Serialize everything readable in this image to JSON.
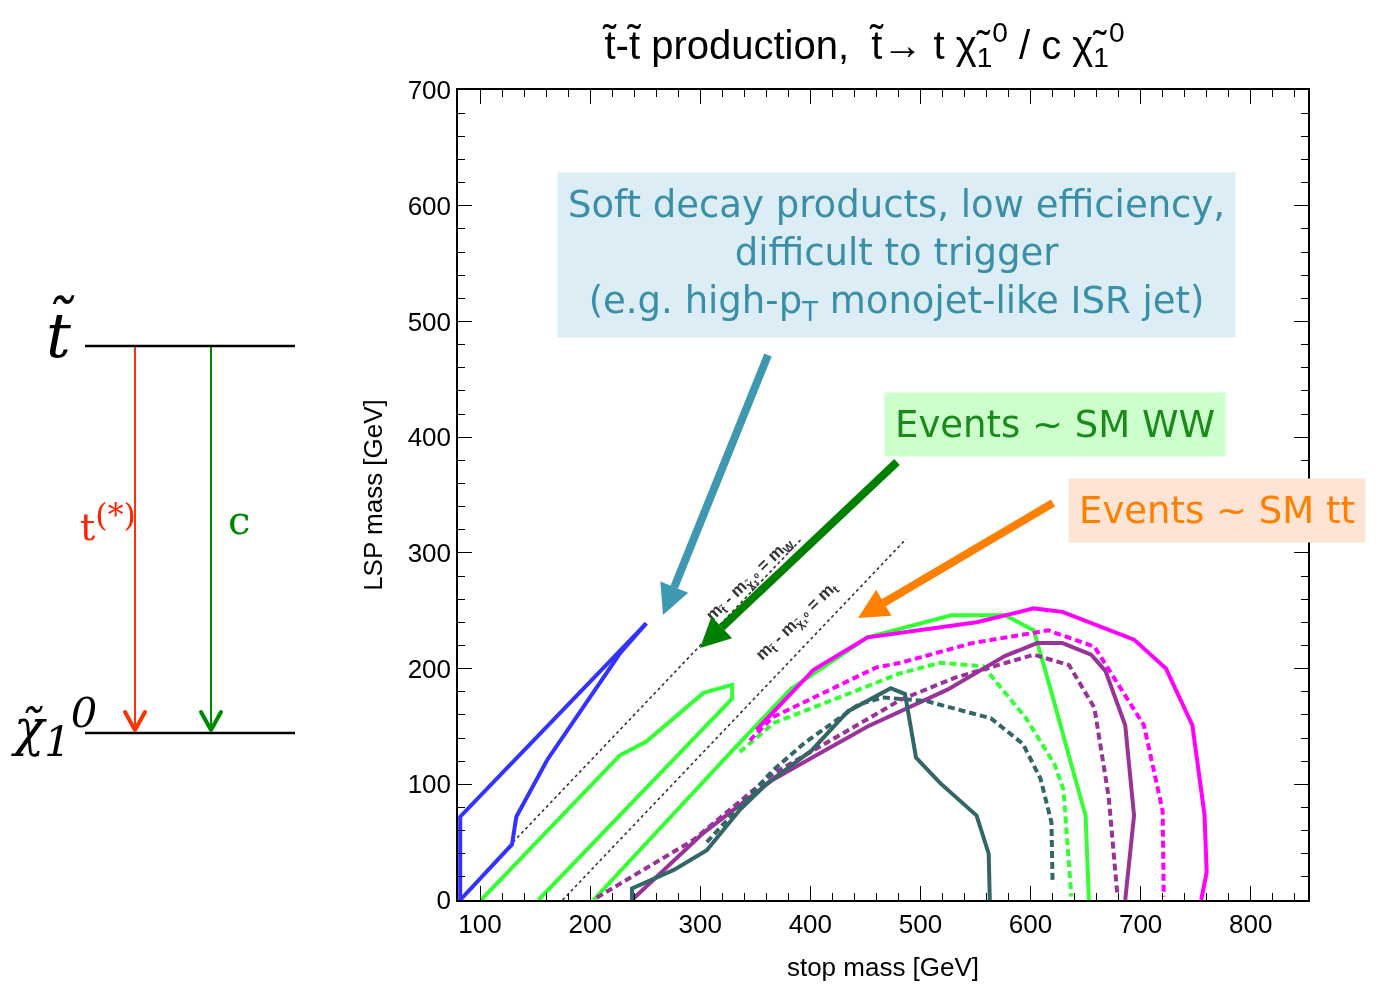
{
  "chart_data": {
    "type": "line",
    "title": "t̃-t̃ production,  t̃→ t χ̃$_{1}$$^{0}$ / c χ̃$_{1}$$^{0}$",
    "xlabel": "stop mass [GeV]",
    "ylabel": "LSP mass [GeV]",
    "xlim": [
      80,
      852
    ],
    "ylim": [
      0,
      700
    ],
    "xticks": [
      100,
      200,
      300,
      400,
      500,
      600,
      700,
      800
    ],
    "yticks": [
      0,
      100,
      200,
      300,
      400,
      500,
      600,
      700
    ],
    "series": [
      {
        "color": "#333333",
        "line_style": "dotted",
        "x": [
          130,
          392
        ],
        "values": [
          50,
          312
        ]
      },
      {
        "color": "#333333",
        "line_style": "dotted",
        "x": [
          175,
          487
        ],
        "values": [
          0,
          312
        ]
      },
      {
        "color": "#3333ff",
        "line_style": "solid",
        "x": [
          82,
          82,
          251
        ],
        "values": [
          0,
          72,
          239
        ]
      },
      {
        "color": "#3333ff",
        "line_style": "solid",
        "x": [
          82,
          129,
          133,
          161,
          227,
          251
        ],
        "values": [
          0,
          48,
          72,
          121,
          213,
          239
        ]
      },
      {
        "color": "#33ff33",
        "line_style": "solid",
        "x": [
          101,
          227,
          251,
          303,
          329,
          329,
          153
        ],
        "values": [
          0,
          125,
          137,
          179,
          186,
          174,
          0
        ]
      },
      {
        "color": "#33ff33",
        "line_style": "solid",
        "x": [
          203,
          330,
          382,
          452,
          528,
          577,
          603,
          620,
          640,
          650,
          653
        ],
        "values": [
          0,
          130,
          182,
          227,
          246,
          246,
          233,
          176,
          107,
          73,
          0
        ]
      },
      {
        "color": "#33ff33",
        "line_style": "dashed",
        "x": [
          336,
          367,
          482,
          518,
          557,
          596,
          622,
          630,
          637
        ],
        "values": [
          128,
          153,
          196,
          205,
          202,
          157,
          117,
          95,
          3
        ]
      },
      {
        "color": "#ff00ff",
        "line_style": "solid",
        "x": [
          351,
          403,
          452,
          551,
          603,
          629,
          694,
          723,
          747,
          758,
          760,
          755
        ],
        "values": [
          147,
          199,
          227,
          240,
          252,
          249,
          225,
          200,
          151,
          74,
          24,
          0
        ]
      },
      {
        "color": "#ff00ff",
        "line_style": "dashed",
        "x": [
          345,
          366,
          460,
          482,
          547,
          616,
          658,
          703,
          720,
          721
        ],
        "values": [
          138,
          158,
          201,
          205,
          222,
          233,
          219,
          151,
          77,
          3
        ]
      },
      {
        "color": "#993399",
        "line_style": "solid",
        "x": [
          238,
          303,
          366,
          452,
          525,
          577,
          606,
          629,
          655,
          668,
          686,
          694,
          686
        ],
        "values": [
          0,
          58,
          104,
          150,
          182,
          211,
          222,
          222,
          212,
          198,
          151,
          73,
          0
        ]
      },
      {
        "color": "#993399",
        "line_style": "dashed",
        "x": [
          206,
          294,
          366,
          482,
          531,
          603,
          635,
          658,
          671,
          679
        ],
        "values": [
          2,
          52,
          109,
          173,
          192,
          212,
          203,
          166,
          89,
          3
        ]
      },
      {
        "color": "#336666",
        "line_style": "solid",
        "x": [
          238,
          238,
          276,
          306,
          336,
          361,
          401,
          434,
          473,
          486,
          496,
          518,
          551,
          562,
          563
        ],
        "values": [
          0,
          10,
          26,
          43,
          78,
          101,
          129,
          163,
          183,
          178,
          123,
          101,
          73,
          40,
          0
        ]
      },
      {
        "color": "#336666",
        "line_style": "dashed",
        "x": [
          306,
          366,
          395,
          444,
          466,
          505,
          564,
          593,
          609,
          619,
          620
        ],
        "values": [
          50,
          112,
          136,
          169,
          175,
          172,
          157,
          135,
          105,
          67,
          16
        ]
      }
    ],
    "annotations": [
      "Soft decay products, low efficiency,\ndifficult to trigger\n(e.g. high-p$_{T}$ monojet-like ISR jet)",
      "Events ~ SM WW",
      "Events ~ SM tt",
      "m$_{t̃}$ - m$_{χ̃₁⁰}$ = m$_{W}$",
      "m$_{t̃}$ - m$_{χ̃₁⁰}$ = m$_{t}$",
      "t̃",
      "χ̃$_{1}$$^{0}$",
      "t$^{(*)}$",
      "c"
    ]
  }
}
